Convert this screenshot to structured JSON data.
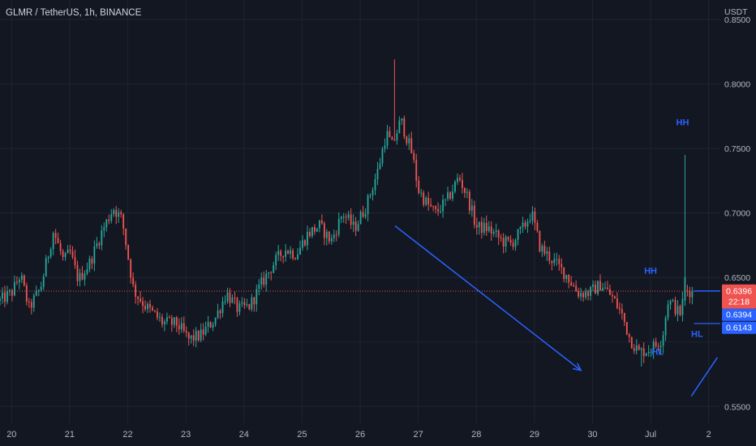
{
  "header": {
    "symbol": "GLMR / TetherUS, 1h, BINANCE"
  },
  "colors": {
    "background": "#131722",
    "grid": "#1f2433",
    "up": "#26a69a",
    "down": "#ef5350",
    "annotation": "#2962ff",
    "price_line": "#ef5350",
    "axis_text": "#b2b5be"
  },
  "chart_data": {
    "type": "candlestick",
    "timeframe": "1h",
    "y_unit": "USDT",
    "ylim": [
      0.537,
      0.865
    ],
    "y_ticks": [
      "0.8500",
      "0.8000",
      "0.7500",
      "0.7000",
      "0.6500",
      "0.5500"
    ],
    "y_tick_values": [
      0.85,
      0.8,
      0.75,
      0.7,
      0.65,
      0.55
    ],
    "x_ticks": [
      "20",
      "21",
      "22",
      "23",
      "24",
      "25",
      "26",
      "27",
      "28",
      "29",
      "30",
      "Jul",
      "2"
    ],
    "x_range_days": [
      19.8,
      32.2
    ],
    "grid": true,
    "price_path": {
      "start_day": 19.8,
      "end_day": 31.72,
      "anchors": [
        [
          19.8,
          0.632
        ],
        [
          20.0,
          0.638
        ],
        [
          20.15,
          0.652
        ],
        [
          20.3,
          0.626
        ],
        [
          20.5,
          0.642
        ],
        [
          20.72,
          0.686
        ],
        [
          20.9,
          0.662
        ],
        [
          21.0,
          0.67
        ],
        [
          21.15,
          0.648
        ],
        [
          21.35,
          0.662
        ],
        [
          21.55,
          0.685
        ],
        [
          21.75,
          0.704
        ],
        [
          21.9,
          0.695
        ],
        [
          22.1,
          0.64
        ],
        [
          22.3,
          0.628
        ],
        [
          22.6,
          0.615
        ],
        [
          22.85,
          0.614
        ],
        [
          23.05,
          0.602
        ],
        [
          23.25,
          0.605
        ],
        [
          23.5,
          0.618
        ],
        [
          23.7,
          0.638
        ],
        [
          23.9,
          0.625
        ],
        [
          24.1,
          0.628
        ],
        [
          24.3,
          0.645
        ],
        [
          24.5,
          0.66
        ],
        [
          24.7,
          0.672
        ],
        [
          24.9,
          0.668
        ],
        [
          25.1,
          0.684
        ],
        [
          25.3,
          0.69
        ],
        [
          25.5,
          0.678
        ],
        [
          25.7,
          0.7
        ],
        [
          25.9,
          0.688
        ],
        [
          26.1,
          0.705
        ],
        [
          26.3,
          0.732
        ],
        [
          26.45,
          0.762
        ],
        [
          26.55,
          0.752
        ],
        [
          26.7,
          0.772
        ],
        [
          26.9,
          0.745
        ],
        [
          27.0,
          0.718
        ],
        [
          27.15,
          0.707
        ],
        [
          27.3,
          0.7
        ],
        [
          27.5,
          0.71
        ],
        [
          27.7,
          0.728
        ],
        [
          27.85,
          0.712
        ],
        [
          28.0,
          0.689
        ],
        [
          28.2,
          0.688
        ],
        [
          28.45,
          0.678
        ],
        [
          28.6,
          0.676
        ],
        [
          28.8,
          0.688
        ],
        [
          28.95,
          0.7
        ],
        [
          29.1,
          0.673
        ],
        [
          29.3,
          0.664
        ],
        [
          29.55,
          0.652
        ],
        [
          29.75,
          0.638
        ],
        [
          29.95,
          0.638
        ],
        [
          30.15,
          0.645
        ],
        [
          30.35,
          0.634
        ],
        [
          30.5,
          0.622
        ],
        [
          30.65,
          0.602
        ],
        [
          30.8,
          0.592
        ],
        [
          30.95,
          0.594
        ],
        [
          31.1,
          0.598
        ],
        [
          31.2,
          0.603
        ],
        [
          31.3,
          0.632
        ],
        [
          31.4,
          0.628
        ],
        [
          31.5,
          0.621
        ],
        [
          31.6,
          0.64
        ],
        [
          31.72,
          0.6394
        ]
      ],
      "spike": {
        "day": 31.58,
        "high": 0.745,
        "low": 0.628,
        "open": 0.632,
        "close": 0.65
      },
      "overall_high": {
        "day": 26.6,
        "value": 0.819
      },
      "overall_low": {
        "day": 30.85,
        "value": 0.581
      }
    },
    "current_price_line": 0.6394,
    "price_badges": [
      {
        "value": 0.6396,
        "label": "0.6396",
        "sub": "22:18",
        "color": "#ef5350"
      },
      {
        "value": 0.6394,
        "label": "0.6394",
        "color": "#2962ff"
      },
      {
        "value": 0.6143,
        "label": "0.6143",
        "color": "#2962ff"
      }
    ],
    "annotations": [
      {
        "text": "HH",
        "day": 31.55,
        "value": 0.768
      },
      {
        "text": "HH",
        "day": 31.0,
        "value": 0.653
      },
      {
        "text": "HL",
        "day": 31.12,
        "value": 0.59
      },
      {
        "text": "HL",
        "day": 31.8,
        "value": 0.604
      }
    ],
    "drawings": [
      {
        "type": "arrow",
        "from": [
          26.6,
          0.69
        ],
        "to": [
          29.8,
          0.578
        ],
        "color": "#2962ff"
      },
      {
        "type": "line",
        "from": [
          31.7,
          0.558
        ],
        "to": [
          32.15,
          0.588
        ],
        "color": "#2962ff"
      }
    ]
  }
}
